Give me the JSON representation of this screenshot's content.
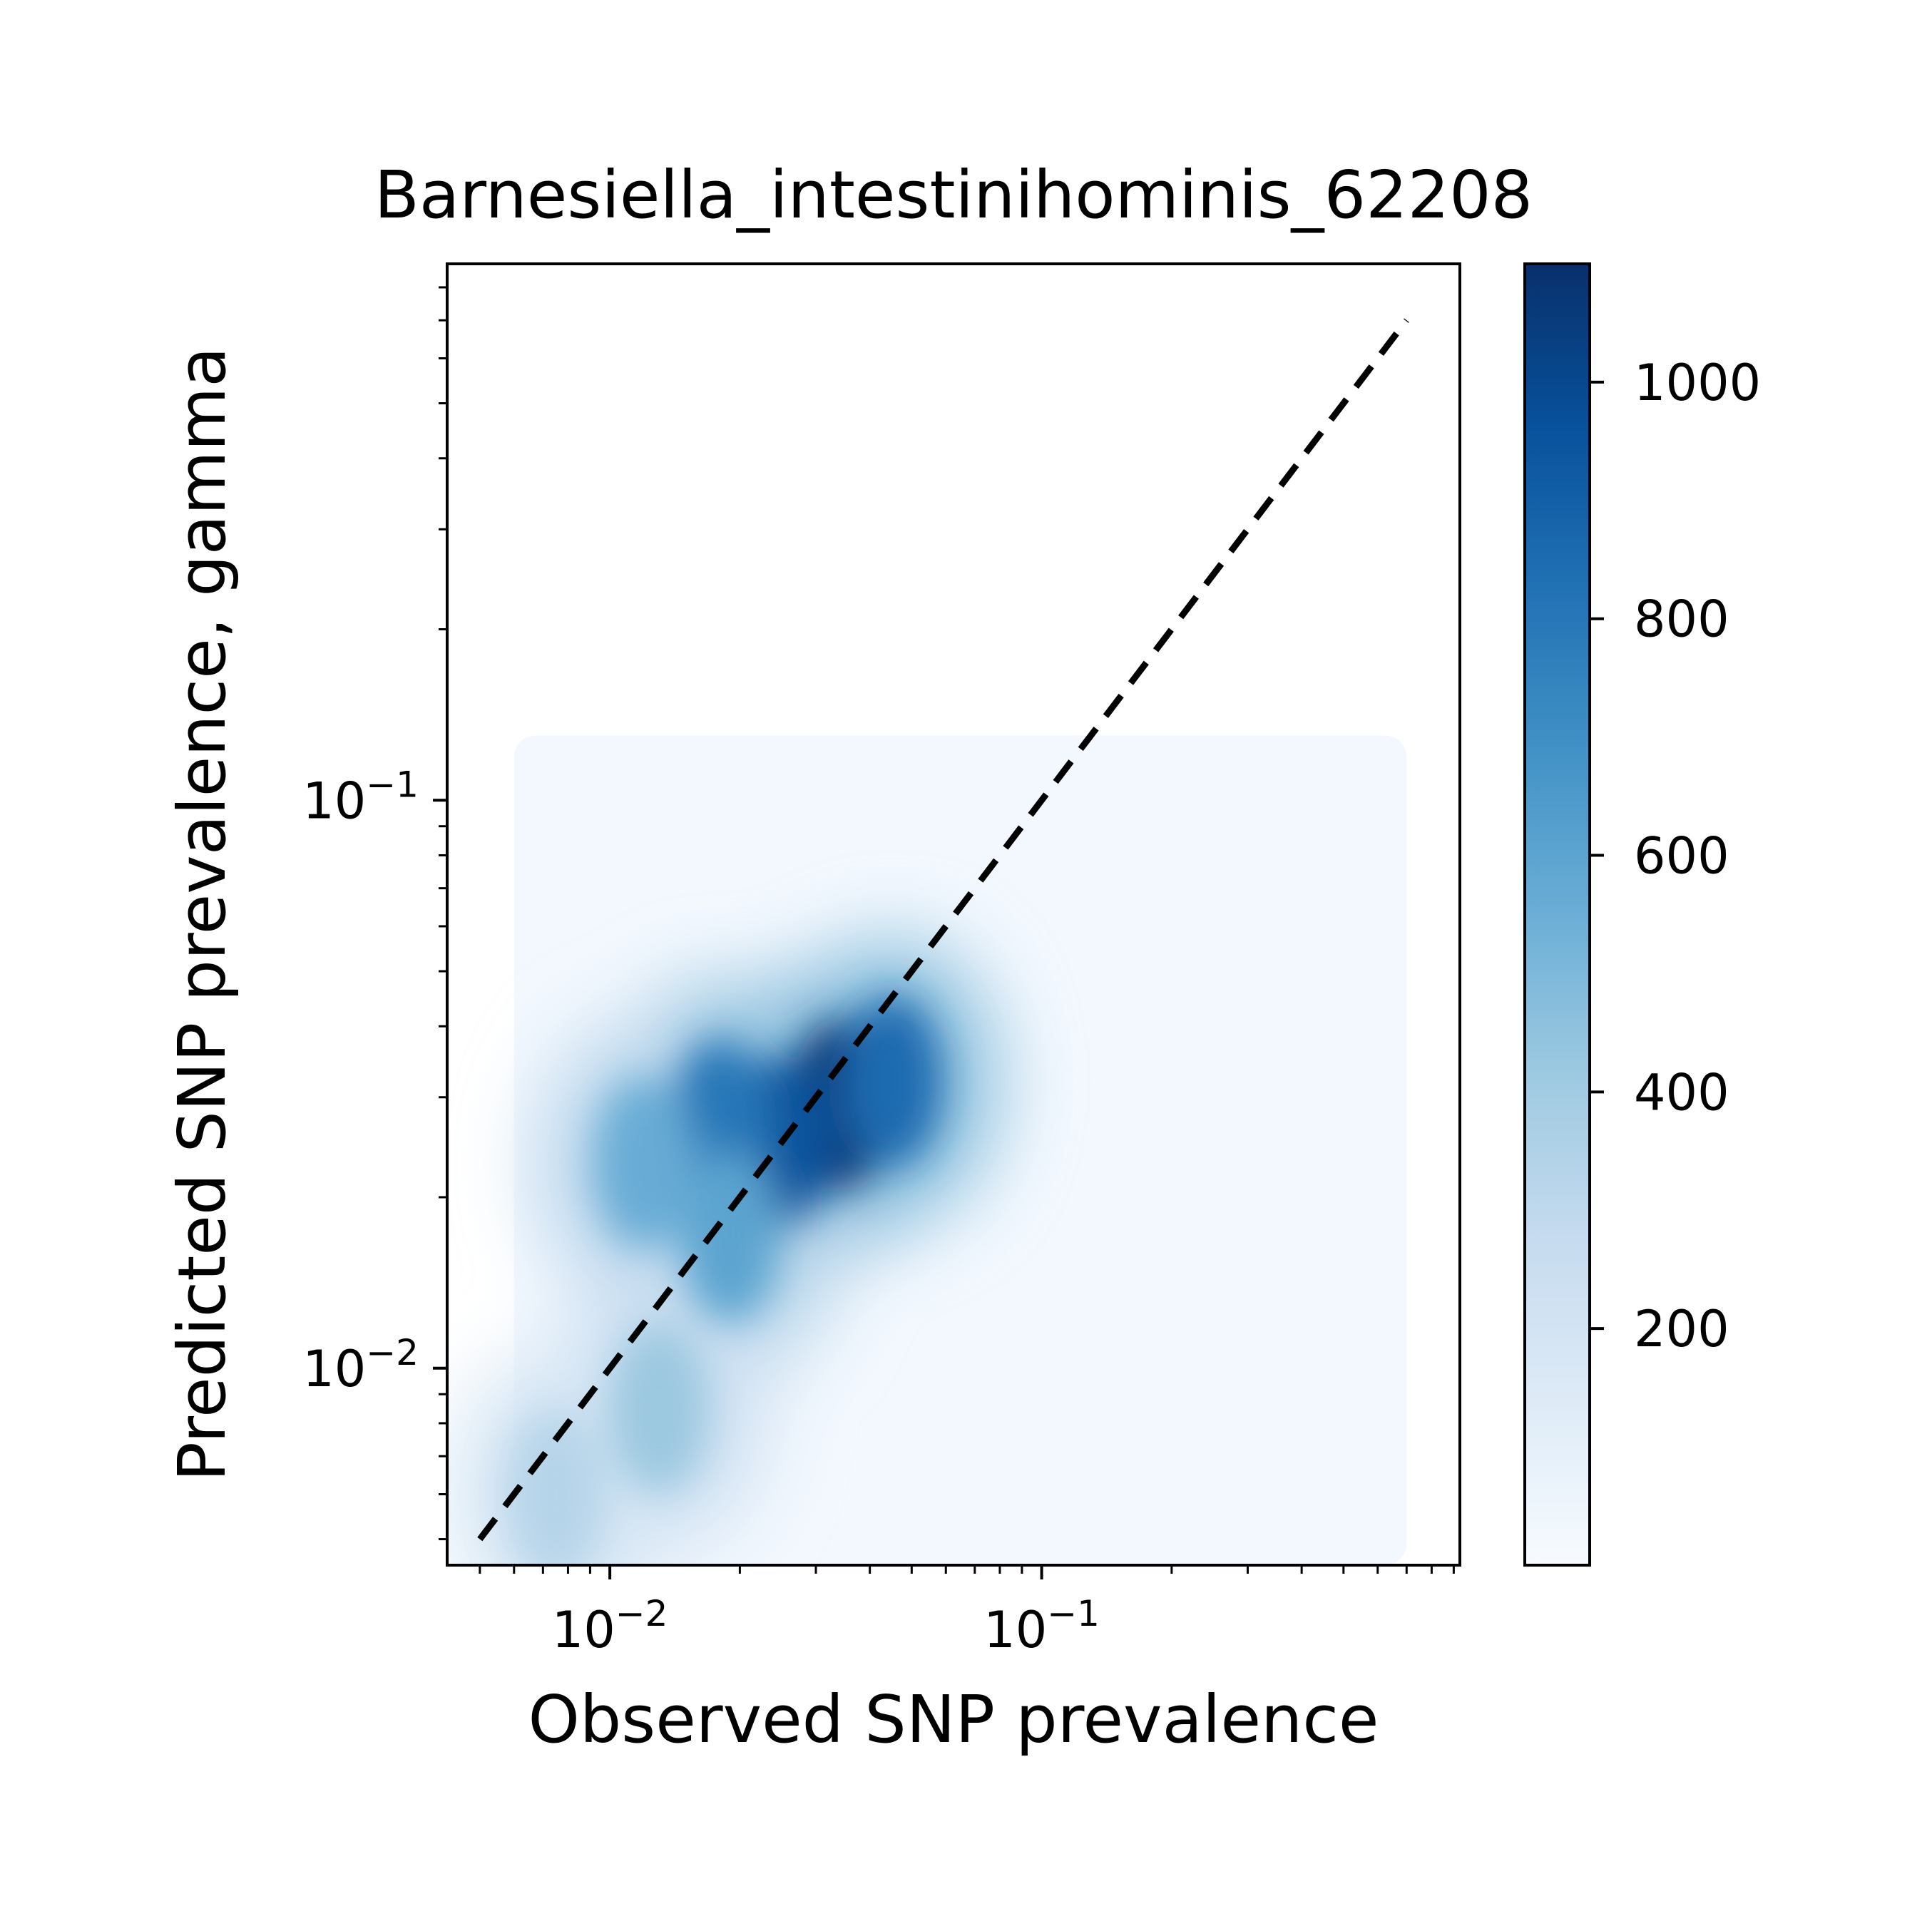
{
  "chart_data": {
    "type": "heatmap",
    "title": "Barnesiella_intestinihominis_62208",
    "xlabel": "Observed SNP prevalence",
    "ylabel": "Predicted SNP prevalence, gamma",
    "xscale": "log",
    "yscale": "log",
    "xlim": [
      0.0042,
      0.93
    ],
    "ylim": [
      0.0045,
      0.88
    ],
    "x_ticks": [
      {
        "value": 0.01,
        "base": "10",
        "exp": "−2"
      },
      {
        "value": 0.1,
        "base": "10",
        "exp": "−1"
      }
    ],
    "y_ticks": [
      {
        "value": 0.01,
        "base": "10",
        "exp": "−2"
      },
      {
        "value": 0.1,
        "base": "10",
        "exp": "−1"
      }
    ],
    "reference_line": {
      "style": "dashed",
      "color": "#000000",
      "x": [
        0.005,
        0.7
      ],
      "y": [
        0.005,
        0.7
      ]
    },
    "colorbar": {
      "colormap": "Blues",
      "range": [
        0,
        1100
      ],
      "ticks": [
        200,
        400,
        600,
        800,
        1000
      ],
      "tick_labels": [
        "200",
        "400",
        "600",
        "800",
        "1000"
      ]
    },
    "density_hotspots": [
      {
        "x": 0.034,
        "y": 0.029,
        "density": 1080
      },
      {
        "x": 0.025,
        "y": 0.025,
        "density": 950
      },
      {
        "x": 0.045,
        "y": 0.032,
        "density": 850
      },
      {
        "x": 0.018,
        "y": 0.027,
        "density": 800
      },
      {
        "x": 0.019,
        "y": 0.017,
        "density": 600
      },
      {
        "x": 0.012,
        "y": 0.023,
        "density": 560
      },
      {
        "x": 0.013,
        "y": 0.0085,
        "density": 420
      },
      {
        "x": 0.0075,
        "y": 0.006,
        "density": 330
      }
    ],
    "density_region": {
      "x": [
        0.006,
        0.7
      ],
      "y": [
        0.0045,
        0.13
      ]
    }
  }
}
